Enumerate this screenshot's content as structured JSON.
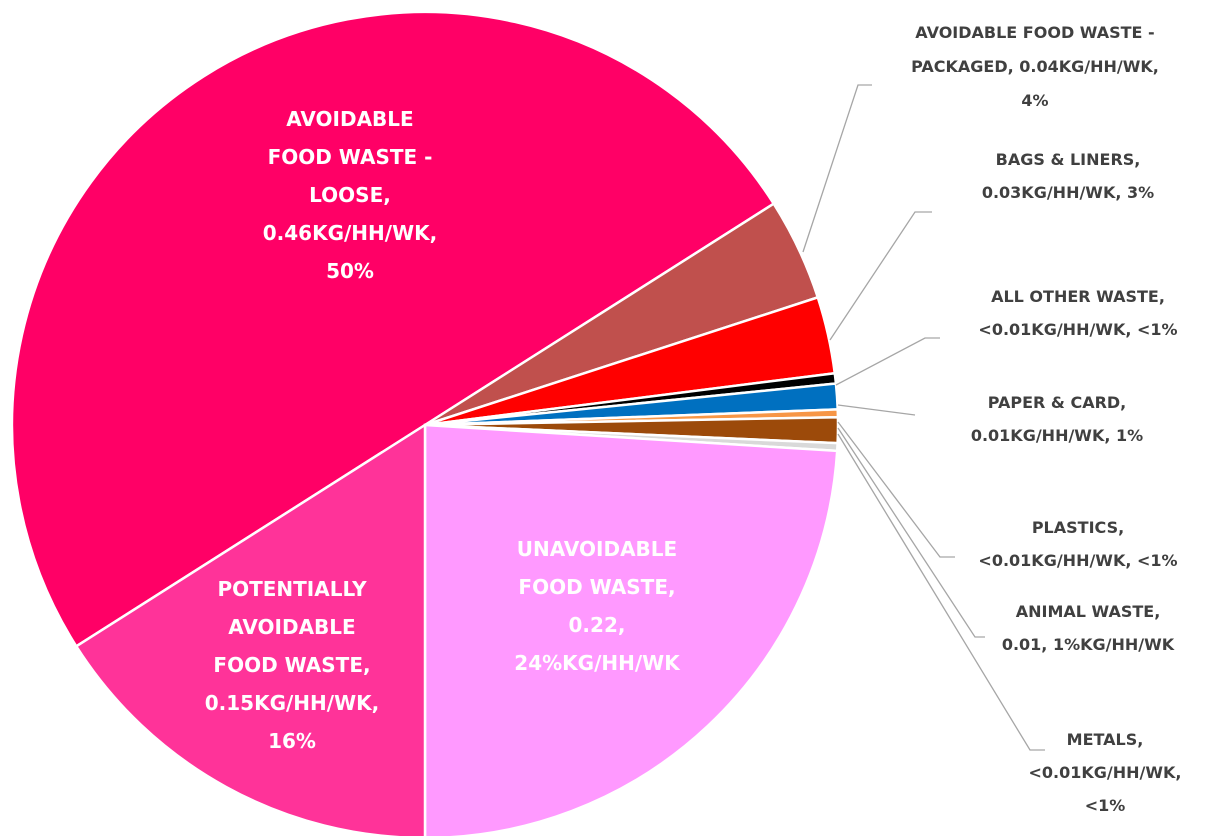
{
  "chart_data": {
    "type": "pie",
    "labels": [
      [
        "AVOIDABLE",
        "FOOD WASTE -",
        "LOOSE,",
        "0.46KG/HH/WK,",
        "50%"
      ],
      [
        "AVOIDABLE FOOD WASTE -",
        "PACKAGED, 0.04KG/HH/WK,",
        "4%"
      ],
      [
        "BAGS & LINERS,",
        "0.03KG/HH/WK, 3%"
      ],
      [
        "ALL OTHER WASTE,",
        "<0.01KG/HH/WK, <1%"
      ],
      [
        "PAPER & CARD,",
        "0.01KG/HH/WK, 1%"
      ],
      [
        "PLASTICS,",
        "<0.01KG/HH/WK, <1%"
      ],
      [
        "ANIMAL WASTE,",
        "0.01, 1%KG/HH/WK"
      ],
      [
        "METALS,",
        "<0.01KG/HH/WK,",
        "<1%"
      ],
      [
        "UNAVOIDABLE",
        "FOOD WASTE,",
        "0.22,",
        "24%KG/HH/WK"
      ],
      [
        "POTENTIALLY",
        "AVOIDABLE",
        "FOOD WASTE,",
        "0.15KG/HH/WK,",
        "16%"
      ]
    ],
    "values": [
      50,
      4,
      3,
      0.4,
      1,
      0.3,
      1,
      0.3,
      24,
      16
    ],
    "colors": [
      "#ff0066",
      "#c0504d",
      "#ff0000",
      "#000000",
      "#0070c0",
      "#f79646",
      "#9c4a0a",
      "#d9d9d9",
      "#ff99ff",
      "#ff3399"
    ]
  }
}
